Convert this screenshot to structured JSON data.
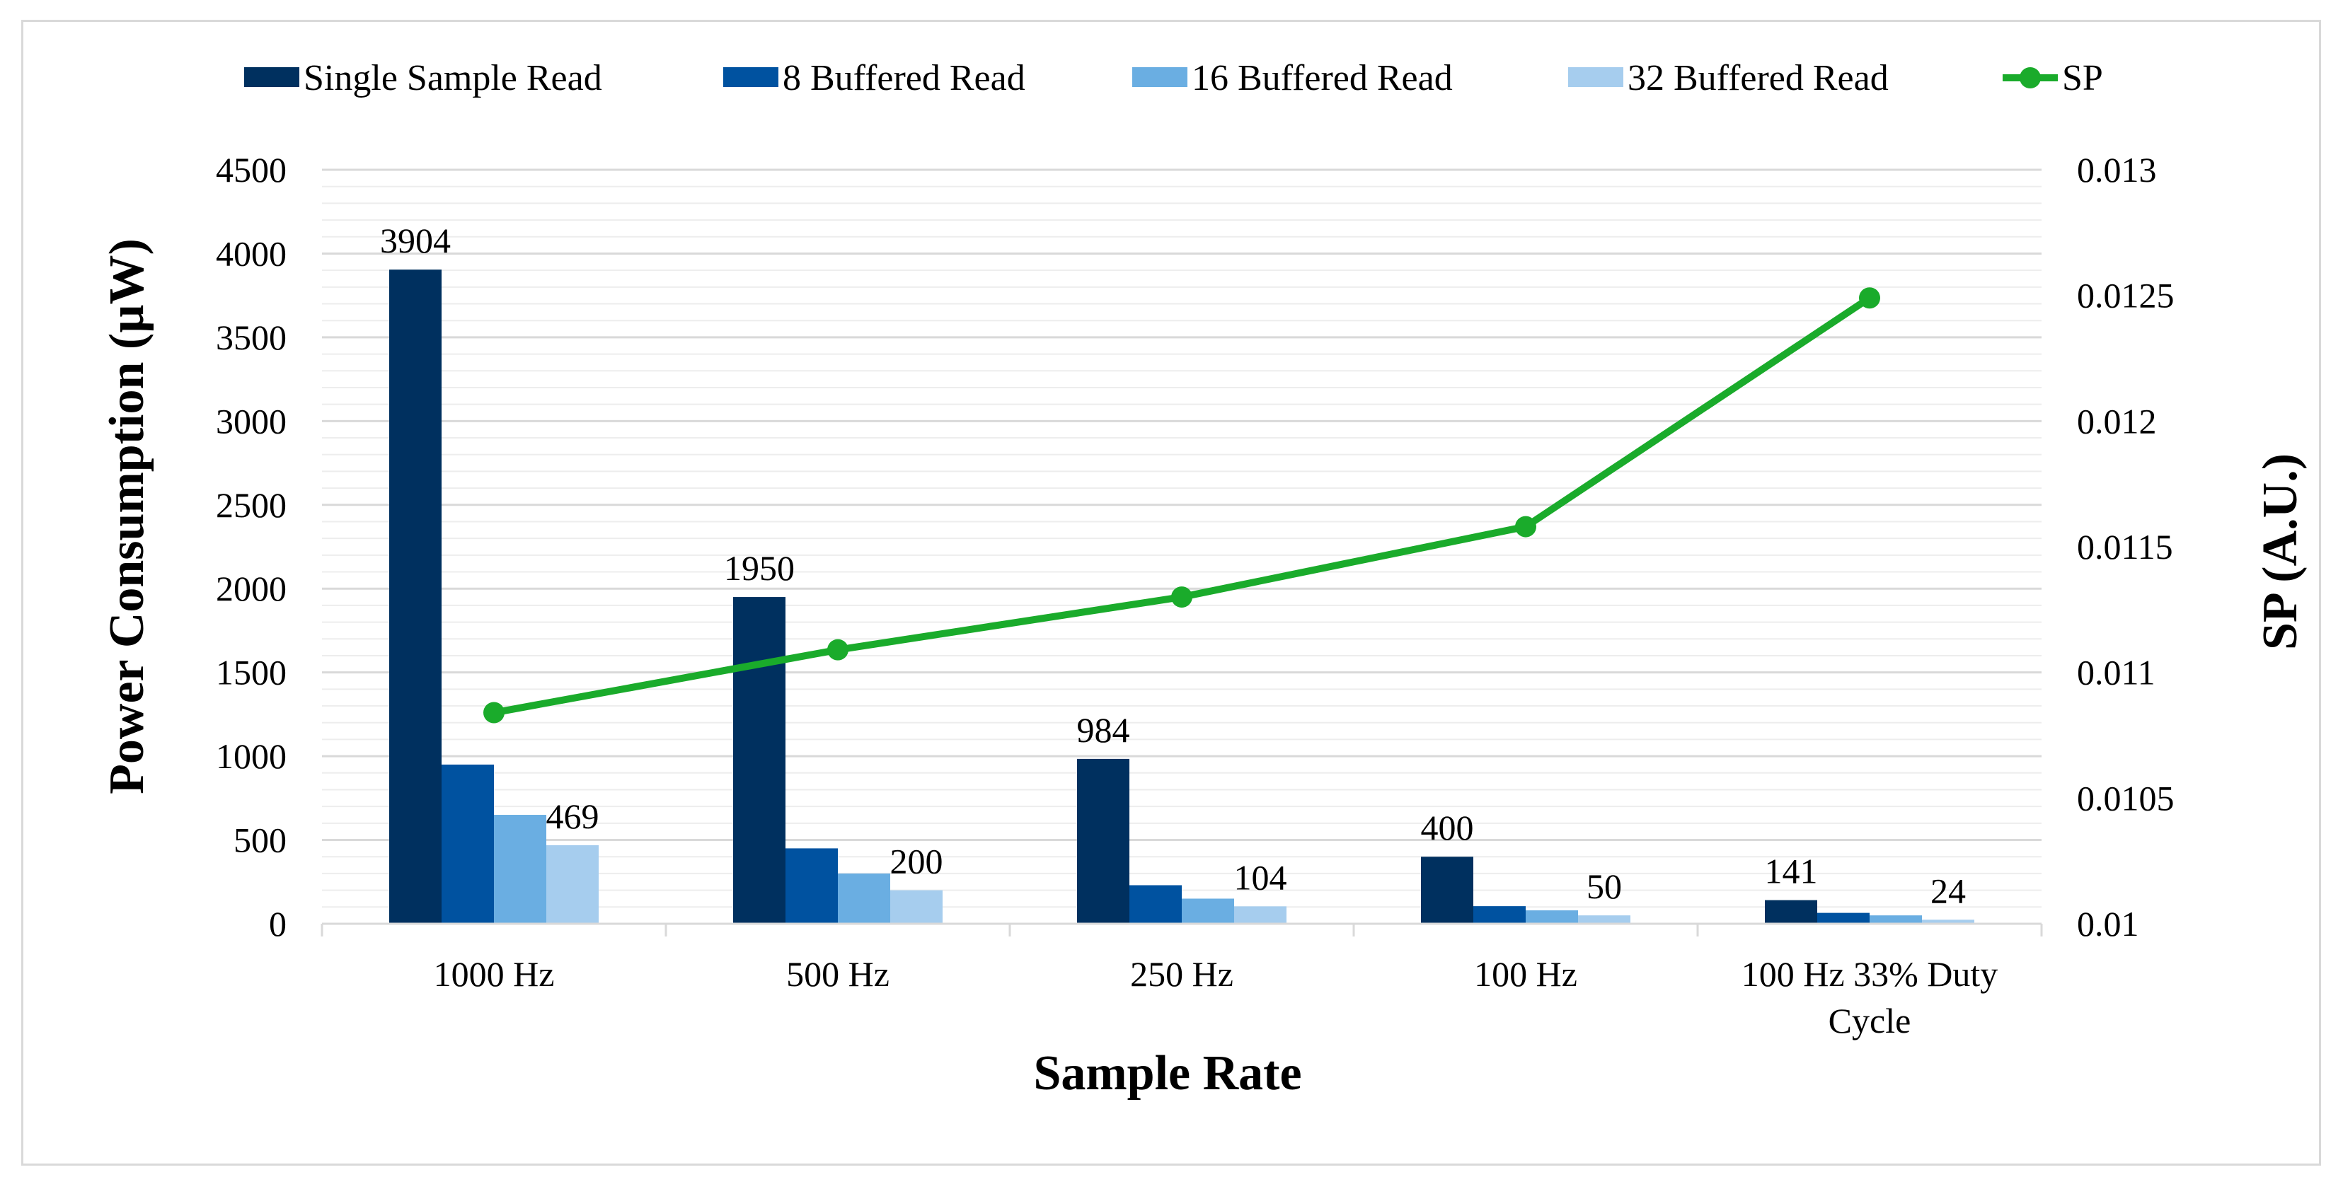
{
  "chart_data": {
    "type": "bar",
    "categories": [
      "1000 Hz",
      "500 Hz",
      "250 Hz",
      "100 Hz",
      "100 Hz 33% Duty Cycle"
    ],
    "series": [
      {
        "name": "Single Sample Read",
        "values": [
          3904,
          1950,
          984,
          400,
          141
        ],
        "color": "#00305f"
      },
      {
        "name": "8 Buffered Read",
        "values": [
          950,
          450,
          230,
          105,
          65
        ],
        "color": "#0052a0"
      },
      {
        "name": "16 Buffered Read",
        "values": [
          650,
          300,
          150,
          80,
          50
        ],
        "color": "#6aaee2"
      },
      {
        "name": "32 Buffered Read",
        "values": [
          469,
          200,
          104,
          50,
          24
        ],
        "color": "#a6cdee"
      }
    ],
    "line_series": {
      "name": "SP",
      "axis": "right",
      "values": [
        0.01084,
        0.01109,
        0.0113,
        0.01158,
        0.01249
      ],
      "color": "#1aab2b"
    },
    "data_labels": [
      {
        "series": 0,
        "category": 0,
        "text": "3904"
      },
      {
        "series": 3,
        "category": 0,
        "text": "469"
      },
      {
        "series": 0,
        "category": 1,
        "text": "1950"
      },
      {
        "series": 3,
        "category": 1,
        "text": "200"
      },
      {
        "series": 0,
        "category": 2,
        "text": "984"
      },
      {
        "series": 3,
        "category": 2,
        "text": "104"
      },
      {
        "series": 0,
        "category": 3,
        "text": "400"
      },
      {
        "series": 3,
        "category": 3,
        "text": "50"
      },
      {
        "series": 0,
        "category": 4,
        "text": "141"
      },
      {
        "series": 3,
        "category": 4,
        "text": "24"
      }
    ],
    "xlabel": "Sample Rate",
    "ylabel": "Power Consumption (µW)",
    "y2label": "SP (A.U.)",
    "ylim": [
      0,
      4500
    ],
    "y_ticks": [
      0,
      500,
      1000,
      1500,
      2000,
      2500,
      3000,
      3500,
      4000,
      4500
    ],
    "y2lim": [
      0.01,
      0.013
    ],
    "y2_ticks": [
      "0.01",
      "0.0105",
      "0.011",
      "0.0115",
      "0.012",
      "0.0125",
      "0.013"
    ],
    "grid": true,
    "legend": "top"
  }
}
